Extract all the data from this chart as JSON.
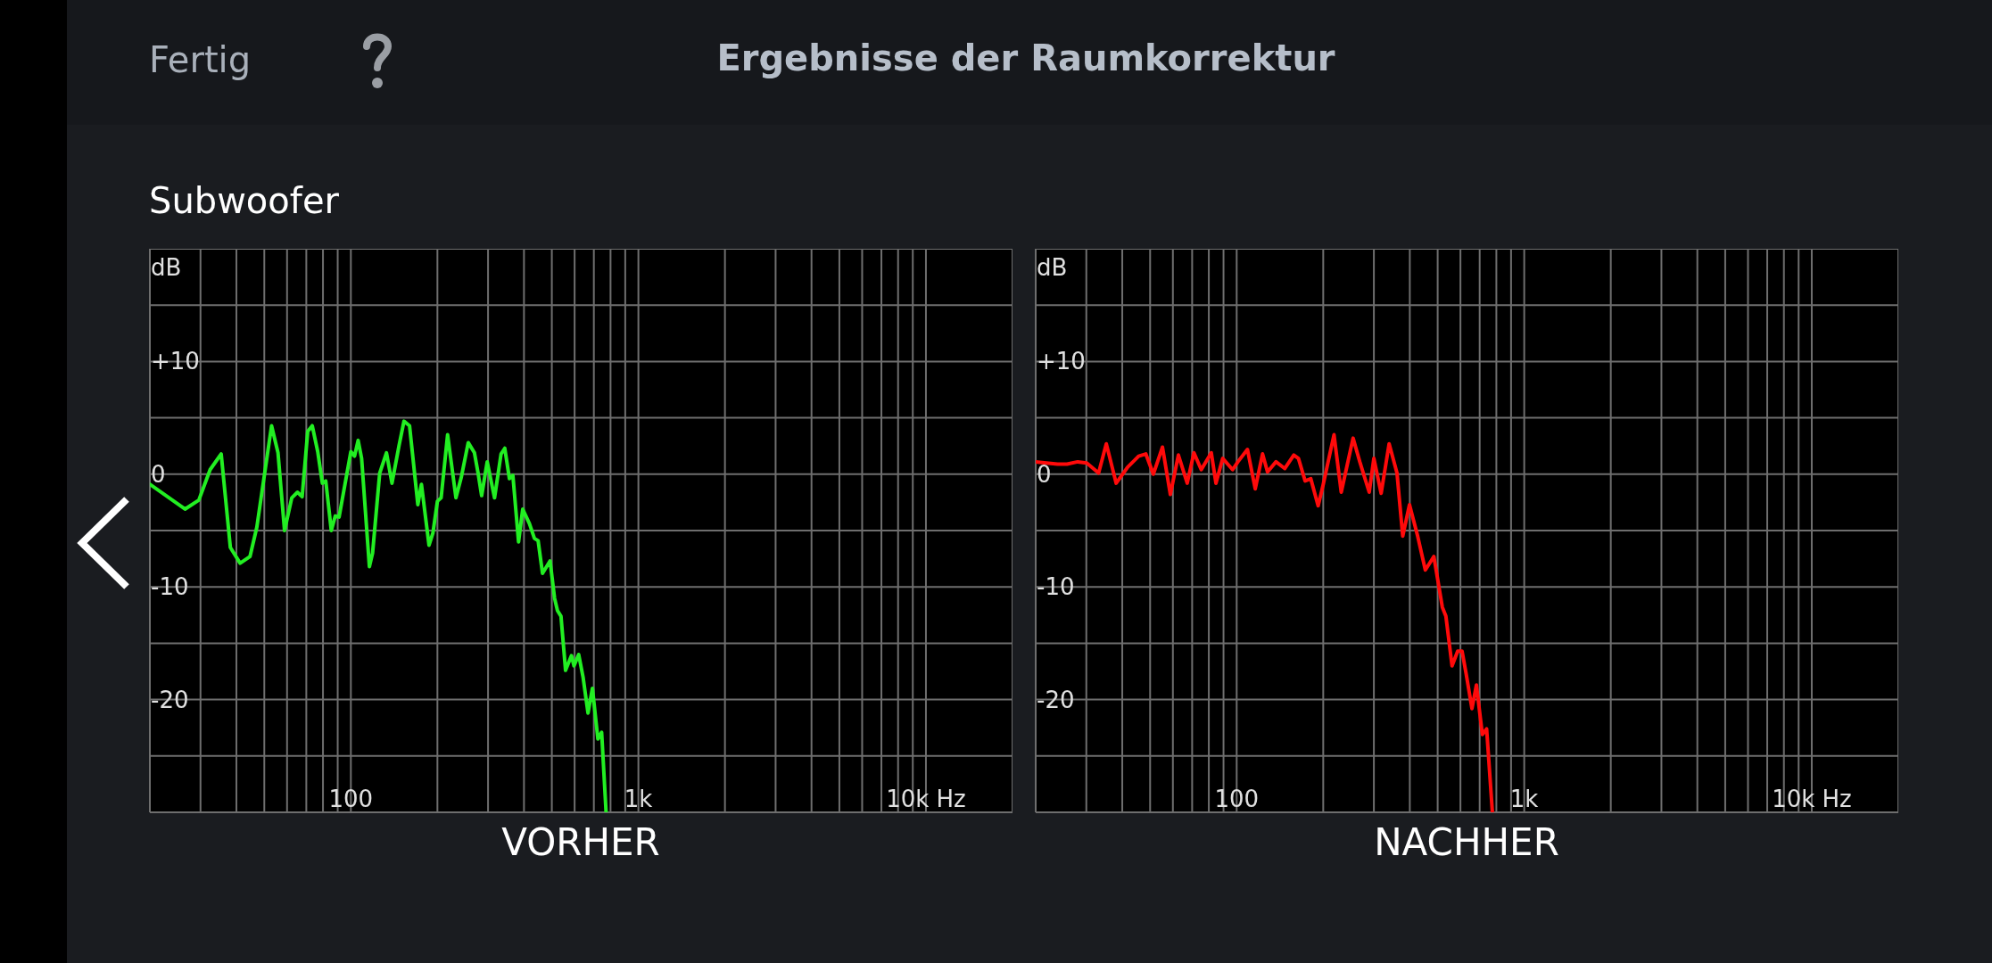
{
  "chart_data": [
    {
      "type": "line",
      "title": "Ergebnisse der Raumkorrektur",
      "subtitle": "Subwoofer",
      "annotations": [
        "Fertig"
      ],
      "xlabel": "VORHER",
      "ylabel": "dB",
      "log": "x",
      "grid": true,
      "x": [
        20,
        26.5,
        29.6,
        32.4,
        35.4,
        38.1,
        41.2,
        44.6,
        47.1,
        53,
        55.8,
        58.8,
        62.3,
        65.2,
        67.7,
        70.8,
        73.4,
        76.7,
        79.6,
        81.8,
        85.5,
        88.3,
        91,
        100,
        103,
        106,
        109,
        116,
        119,
        126,
        133,
        139,
        147,
        153,
        160,
        171,
        176,
        187,
        193,
        200,
        206,
        217,
        232,
        242,
        256,
        269,
        277,
        285,
        298,
        316,
        333,
        343,
        356,
        366,
        383,
        396,
        418,
        435,
        448,
        464,
        493,
        511,
        523,
        538,
        558,
        585,
        597,
        620,
        642,
        668,
        692,
        723,
        745,
        772
      ],
      "series": [
        {
          "color": "#22ee22",
          "values": [
            -0.9,
            -3.1,
            -2.3,
            0.4,
            1.8,
            -6.5,
            -7.9,
            -7.3,
            -4.7,
            4.3,
            1.9,
            -5,
            -2.1,
            -1.6,
            -2,
            3.8,
            4.3,
            2,
            -0.8,
            -0.6,
            -5,
            -3.7,
            -3.8,
            2,
            1.6,
            3,
            1.4,
            -8.2,
            -7,
            0.1,
            1.9,
            -0.8,
            2.5,
            4.7,
            4.3,
            -2.7,
            -0.9,
            -6.3,
            -5.2,
            -2.4,
            -2.1,
            3.5,
            -2.1,
            -0.3,
            2.8,
            1.9,
            0.1,
            -1.9,
            1.1,
            -2.1,
            1.8,
            2.3,
            -0.4,
            -0.1,
            -6,
            -3.1,
            -4.4,
            -5.7,
            -5.9,
            -8.8,
            -7.7,
            -11,
            -12.1,
            -12.6,
            -17.4,
            -16.1,
            -17,
            -16,
            -18,
            -21.2,
            -19,
            -23.5,
            -22.9,
            -30
          ]
        }
      ],
      "xlim": [
        20,
        20000
      ],
      "ylim": [
        -30,
        20
      ],
      "xticks": [
        {
          "value": 30,
          "label": null
        },
        {
          "value": 40,
          "label": null
        },
        {
          "value": 50,
          "label": null
        },
        {
          "value": 60,
          "label": null
        },
        {
          "value": 70,
          "label": null
        },
        {
          "value": 80,
          "label": null
        },
        {
          "value": 90,
          "label": null
        },
        {
          "value": 100,
          "label": "100"
        },
        {
          "value": 200,
          "label": null
        },
        {
          "value": 300,
          "label": null
        },
        {
          "value": 400,
          "label": null
        },
        {
          "value": 500,
          "label": null
        },
        {
          "value": 600,
          "label": null
        },
        {
          "value": 700,
          "label": null
        },
        {
          "value": 800,
          "label": null
        },
        {
          "value": 900,
          "label": null
        },
        {
          "value": 1000,
          "label": "1k"
        },
        {
          "value": 2000,
          "label": null
        },
        {
          "value": 3000,
          "label": null
        },
        {
          "value": 4000,
          "label": null
        },
        {
          "value": 5000,
          "label": null
        },
        {
          "value": 6000,
          "label": null
        },
        {
          "value": 7000,
          "label": null
        },
        {
          "value": 8000,
          "label": null
        },
        {
          "value": 9000,
          "label": null
        },
        {
          "value": 10000,
          "label": "10k Hz"
        }
      ],
      "yticks": [
        {
          "value": 15,
          "label": null
        },
        {
          "value": 10,
          "label": "+10"
        },
        {
          "value": 5,
          "label": null
        },
        0,
        {
          "value": -5,
          "label": null
        },
        -10,
        {
          "value": -15,
          "label": null
        },
        -20,
        {
          "value": -25,
          "label": null
        }
      ]
    },
    {
      "type": "line",
      "xlabel": "NACHHER",
      "ylabel": "dB",
      "log": "x",
      "grid": true,
      "x": [
        20,
        21.8,
        23.8,
        25.7,
        28,
        30.1,
        33.1,
        35.2,
        38.1,
        41.7,
        45.6,
        48.3,
        51.3,
        55.2,
        58.8,
        62.7,
        67.3,
        71,
        75.3,
        81.6,
        84.7,
        89.4,
        96.8,
        101,
        109,
        116,
        123,
        128,
        137,
        147,
        158,
        164,
        173,
        181,
        192,
        200,
        218,
        231,
        254,
        268,
        289,
        300,
        318,
        339,
        361,
        378,
        399,
        426,
        453,
        485,
        519,
        534,
        561,
        587,
        608,
        628,
        658,
        682,
        715,
        740,
        775
      ],
      "series": [
        {
          "color": "#ff0a0a",
          "values": [
            1.1,
            1,
            0.9,
            0.9,
            1.1,
            1,
            0.1,
            2.7,
            -0.8,
            0.6,
            1.6,
            1.8,
            0,
            2.4,
            -1.8,
            1.7,
            -0.8,
            1.9,
            0.4,
            1.9,
            -0.8,
            1.4,
            0.4,
            1.1,
            2.2,
            -1.3,
            1.8,
            0.2,
            1.1,
            0.5,
            1.7,
            1.4,
            -0.6,
            -0.4,
            -2.8,
            -0.9,
            3.5,
            -1.6,
            3.2,
            1.1,
            -1.6,
            1.4,
            -1.7,
            2.7,
            0.1,
            -5.5,
            -2.7,
            -5.5,
            -8.5,
            -7.3,
            -11.8,
            -12.6,
            -17,
            -15.7,
            -15.7,
            -17.7,
            -20.8,
            -18.7,
            -23.1,
            -22.6,
            -30
          ]
        }
      ],
      "xlim": [
        20,
        20000
      ],
      "ylim": [
        -30,
        20
      ],
      "xticks": [
        {
          "value": 30,
          "label": null
        },
        {
          "value": 40,
          "label": null
        },
        {
          "value": 50,
          "label": null
        },
        {
          "value": 60,
          "label": null
        },
        {
          "value": 70,
          "label": null
        },
        {
          "value": 80,
          "label": null
        },
        {
          "value": 90,
          "label": null
        },
        {
          "value": 100,
          "label": "100"
        },
        {
          "value": 200,
          "label": null
        },
        {
          "value": 300,
          "label": null
        },
        {
          "value": 400,
          "label": null
        },
        {
          "value": 500,
          "label": null
        },
        {
          "value": 600,
          "label": null
        },
        {
          "value": 700,
          "label": null
        },
        {
          "value": 800,
          "label": null
        },
        {
          "value": 900,
          "label": null
        },
        {
          "value": 1000,
          "label": "1k"
        },
        {
          "value": 2000,
          "label": null
        },
        {
          "value": 3000,
          "label": null
        },
        {
          "value": 4000,
          "label": null
        },
        {
          "value": 5000,
          "label": null
        },
        {
          "value": 6000,
          "label": null
        },
        {
          "value": 7000,
          "label": null
        },
        {
          "value": 8000,
          "label": null
        },
        {
          "value": 9000,
          "label": null
        },
        {
          "value": 10000,
          "label": "10k Hz"
        }
      ],
      "yticks": [
        {
          "value": 15,
          "label": null
        },
        {
          "value": 10,
          "label": "+10"
        },
        {
          "value": 5,
          "label": null
        },
        0,
        {
          "value": -5,
          "label": null
        },
        -10,
        {
          "value": -15,
          "label": null
        },
        -20,
        {
          "value": -25,
          "label": null
        }
      ]
    }
  ]
}
